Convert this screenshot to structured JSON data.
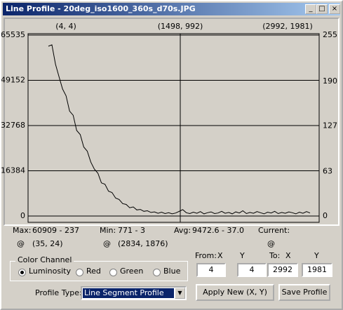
{
  "window": {
    "title": "Line Profile - 20deg_iso1600_360s_d70s.JPG"
  },
  "chart_data": {
    "type": "line",
    "annotations": [
      "(4, 4)",
      "(1498, 992)",
      "(2992, 1981)"
    ],
    "series": [
      {
        "color": "#000000",
        "values": [
          61500,
          62000,
          55000,
          50500,
          46000,
          43500,
          38000,
          36500,
          31000,
          29500,
          25000,
          23500,
          19500,
          17000,
          15500,
          12000,
          11500,
          9000,
          8500,
          6500,
          6000,
          4500,
          4200,
          3000,
          3300,
          2200,
          2400,
          1700,
          1900,
          1300,
          1500,
          1000,
          1400,
          900,
          1200,
          800,
          1100,
          1700,
          2300,
          1200,
          900,
          1400,
          1000,
          1600,
          800,
          1200,
          1500,
          900,
          1100,
          1700,
          1000,
          1300,
          800,
          1500,
          1100,
          1900,
          900,
          1300,
          1000,
          1600,
          1200,
          800,
          1400,
          1100,
          1700,
          900,
          1300,
          1000,
          1500,
          1200,
          800,
          1400,
          1000,
          1600,
          1100
        ]
      }
    ],
    "ylim": [
      0,
      65535
    ],
    "yticks": [
      0,
      16384,
      32768,
      49152,
      65535
    ],
    "y2lim": [
      0,
      255
    ],
    "y2ticks": [
      0,
      63,
      127,
      190,
      255
    ],
    "grid": true
  },
  "stats": {
    "max_label": "Max:",
    "max_value": "60909 - 237",
    "max_at": "@",
    "max_pos": "(35, 24)",
    "min_label": "Min:",
    "min_value": "771 - 3",
    "min_at": "@",
    "min_pos": "(2834, 1876)",
    "avg_label": "Avg:",
    "avg_value": "9472.6 - 37.0",
    "current_label": "Current:",
    "current_at": "@"
  },
  "color_channel": {
    "legend": "Color Channel",
    "options": [
      "Luminosity",
      "Red",
      "Green",
      "Blue"
    ],
    "selected": 0
  },
  "coords": {
    "from_label": "From:",
    "x_label": "X",
    "y_label": "Y",
    "to_label": "To:",
    "from_x": "4",
    "from_y": "4",
    "to_x": "2992",
    "to_y": "1981"
  },
  "profile": {
    "label": "Profile Type:",
    "value": "Line Segment Profile"
  },
  "buttons": {
    "apply": "Apply New (X, Y)",
    "save": "Save Profile"
  }
}
